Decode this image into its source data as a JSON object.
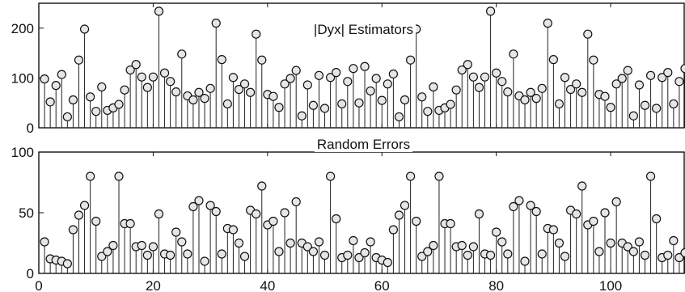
{
  "chart_data": [
    {
      "type": "stem",
      "title": "|Dyx| Estimators",
      "xlim": [
        0,
        113
      ],
      "ylim": [
        0,
        250
      ],
      "yticks": [
        0,
        100,
        200
      ],
      "xticks": [],
      "x": [
        1,
        2,
        3,
        4,
        5,
        6,
        7,
        8,
        9,
        10,
        11,
        12,
        13,
        14,
        15,
        16,
        17,
        18,
        19,
        20,
        21,
        22,
        23,
        24,
        25,
        26,
        27,
        28,
        29,
        30,
        31,
        32,
        33,
        34,
        35,
        36,
        37,
        38,
        39,
        40,
        41,
        42,
        43,
        44,
        45,
        46,
        47,
        48,
        49,
        50,
        51,
        52,
        53,
        54,
        55,
        56,
        57,
        58,
        59,
        60,
        61,
        62,
        63,
        64,
        65,
        66,
        67,
        68,
        69,
        70,
        71,
        72,
        73,
        74,
        75,
        76,
        77,
        78,
        79,
        80,
        81,
        82,
        83,
        84,
        85,
        86,
        87,
        88,
        89,
        90,
        91,
        92,
        93,
        94,
        95,
        96,
        97,
        98,
        99,
        100,
        101,
        102,
        103,
        104,
        105,
        106,
        107,
        108,
        109,
        110,
        111,
        112,
        113
      ],
      "values": [
        98,
        52,
        85,
        107,
        22,
        56,
        136,
        198,
        62,
        33,
        82,
        35,
        40,
        47,
        76,
        116,
        127,
        102,
        81,
        102,
        234,
        110,
        93,
        72,
        148,
        64,
        56,
        71,
        59,
        79,
        210,
        137,
        48,
        101,
        77,
        88,
        71,
        188,
        136,
        67,
        63,
        41,
        88,
        99,
        115,
        24,
        86,
        45,
        105,
        39,
        101,
        111,
        48,
        93,
        119,
        50,
        123,
        74,
        99,
        55,
        88,
        108,
        22,
        56,
        136,
        198,
        62,
        33,
        82,
        35,
        40,
        47,
        76,
        116,
        127,
        102,
        81,
        102,
        234,
        110,
        93,
        72,
        148,
        64,
        56,
        71,
        59,
        79,
        210,
        137,
        48,
        101,
        77,
        88,
        71,
        188,
        136,
        67,
        63,
        41,
        88,
        99,
        115,
        24,
        86,
        45,
        105,
        39,
        101,
        111,
        48,
        93,
        119
      ]
    },
    {
      "type": "stem",
      "title": "Random Errors",
      "xlim": [
        0,
        113
      ],
      "ylim": [
        0,
        100
      ],
      "yticks": [
        0,
        50,
        100
      ],
      "xticks": [
        0,
        20,
        40,
        60,
        80,
        100
      ],
      "x": [
        1,
        2,
        3,
        4,
        5,
        6,
        7,
        8,
        9,
        10,
        11,
        12,
        13,
        14,
        15,
        16,
        17,
        18,
        19,
        20,
        21,
        22,
        23,
        24,
        25,
        26,
        27,
        28,
        29,
        30,
        31,
        32,
        33,
        34,
        35,
        36,
        37,
        38,
        39,
        40,
        41,
        42,
        43,
        44,
        45,
        46,
        47,
        48,
        49,
        50,
        51,
        52,
        53,
        54,
        55,
        56,
        57,
        58,
        59,
        60,
        61,
        62,
        63,
        64,
        65,
        66,
        67,
        68,
        69,
        70,
        71,
        72,
        73,
        74,
        75,
        76,
        77,
        78,
        79,
        80,
        81,
        82,
        83,
        84,
        85,
        86,
        87,
        88,
        89,
        90,
        91,
        92,
        93,
        94,
        95,
        96,
        97,
        98,
        99,
        100,
        101,
        102,
        103,
        104,
        105,
        106,
        107,
        108,
        109,
        110,
        111,
        112,
        113
      ],
      "values": [
        26,
        12,
        11,
        10,
        8,
        36,
        48,
        56,
        80,
        43,
        14,
        18,
        23,
        80,
        41,
        41,
        22,
        23,
        15,
        22,
        49,
        16,
        15,
        34,
        26,
        16,
        55,
        60,
        10,
        56,
        51,
        16,
        37,
        36,
        25,
        14,
        52,
        49,
        72,
        40,
        43,
        18,
        50,
        25,
        59,
        25,
        22,
        18,
        26,
        15,
        80,
        45,
        13,
        15,
        27,
        13,
        17,
        26,
        13,
        11,
        9,
        36,
        48,
        56,
        80,
        43,
        14,
        18,
        23,
        80,
        41,
        41,
        22,
        23,
        15,
        22,
        49,
        16,
        15,
        34,
        26,
        16,
        55,
        60,
        10,
        56,
        51,
        16,
        37,
        36,
        25,
        14,
        52,
        49,
        72,
        40,
        43,
        18,
        50,
        25,
        59,
        25,
        22,
        18,
        26,
        15,
        80,
        45,
        13,
        15,
        27,
        13,
        17
      ]
    }
  ]
}
